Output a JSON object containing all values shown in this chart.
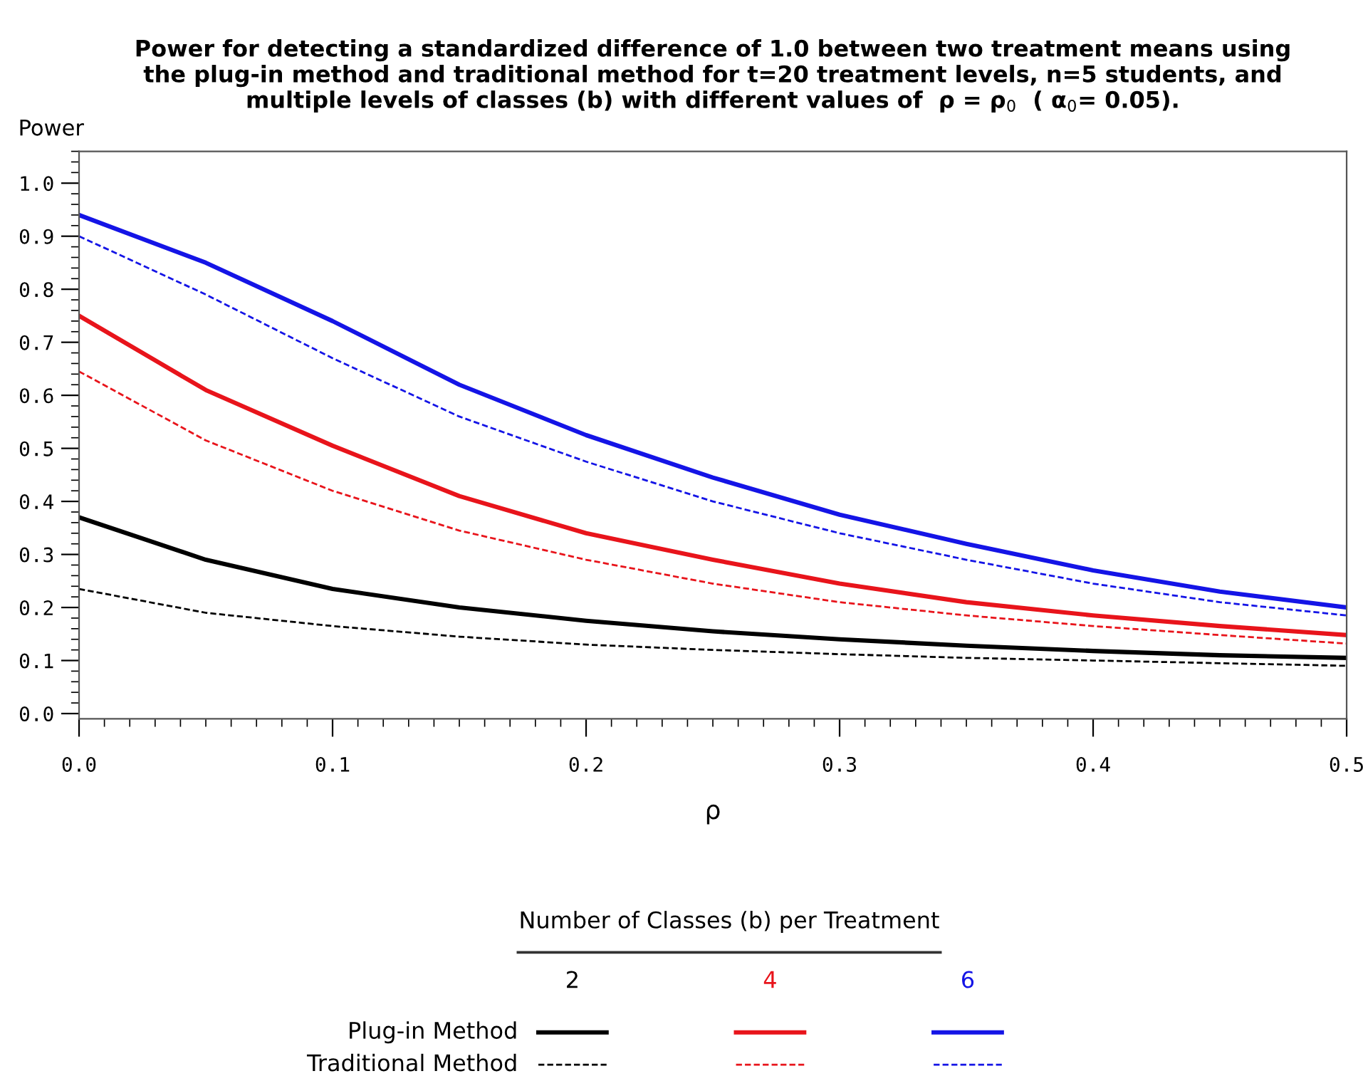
{
  "chart_data": {
    "type": "line",
    "title": "Power for detecting a standardized difference of 1.0 between two treatment means using\nthe plug-in method and traditional method for t=20 treatment levels, n=5 students, and\nmultiple levels of classes (b) with different values of  ρ = ρ$_{0}$  ( α$_{0}$= 0.05).",
    "xlabel": "ρ",
    "ylabel": "Power",
    "legend_title": "Number of Classes (b) per Treatment",
    "annotations": [
      "2",
      "4",
      "6",
      "Plug-in Method",
      "Traditional Method"
    ],
    "x": [
      0,
      0.05,
      0.1,
      0.15,
      0.2,
      0.25,
      0.3,
      0.35,
      0.4,
      0.45,
      0.5
    ],
    "series": [
      {
        "color": "#000000",
        "line_style": "solid",
        "values": [
          0.37,
          0.29,
          0.235,
          0.2,
          0.175,
          0.155,
          0.14,
          0.128,
          0.118,
          0.11,
          0.105
        ]
      },
      {
        "color": "#000000",
        "line_style": "dashed",
        "values": [
          0.235,
          0.19,
          0.165,
          0.145,
          0.13,
          0.12,
          0.112,
          0.105,
          0.1,
          0.095,
          0.09
        ]
      },
      {
        "color": "#e8141b",
        "line_style": "solid",
        "values": [
          0.75,
          0.61,
          0.505,
          0.41,
          0.34,
          0.29,
          0.245,
          0.21,
          0.185,
          0.165,
          0.148
        ]
      },
      {
        "color": "#e8141b",
        "line_style": "dashed",
        "values": [
          0.645,
          0.515,
          0.42,
          0.345,
          0.29,
          0.245,
          0.21,
          0.185,
          0.165,
          0.148,
          0.132
        ]
      },
      {
        "color": "#1414e6",
        "line_style": "solid",
        "values": [
          0.94,
          0.85,
          0.74,
          0.62,
          0.525,
          0.445,
          0.375,
          0.32,
          0.27,
          0.23,
          0.2
        ]
      },
      {
        "color": "#1414e6",
        "line_style": "dashed",
        "values": [
          0.9,
          0.79,
          0.67,
          0.56,
          0.475,
          0.4,
          0.34,
          0.29,
          0.245,
          0.21,
          0.185
        ]
      }
    ],
    "xlim": [
      0,
      0.5
    ],
    "xticks": [
      {
        "value": 0,
        "label": "0.0"
      },
      0.1,
      0.2,
      0.3,
      0.4,
      0.5
    ],
    "ylim": [
      -0.01,
      1.06
    ],
    "yticks": [
      {
        "value": 0,
        "label": "0.0"
      },
      0.1,
      0.2,
      0.3,
      0.4,
      0.5,
      0.6,
      0.7,
      0.8,
      0.9,
      {
        "value": 1.0,
        "label": "1.0"
      }
    ],
    "grid": false
  }
}
